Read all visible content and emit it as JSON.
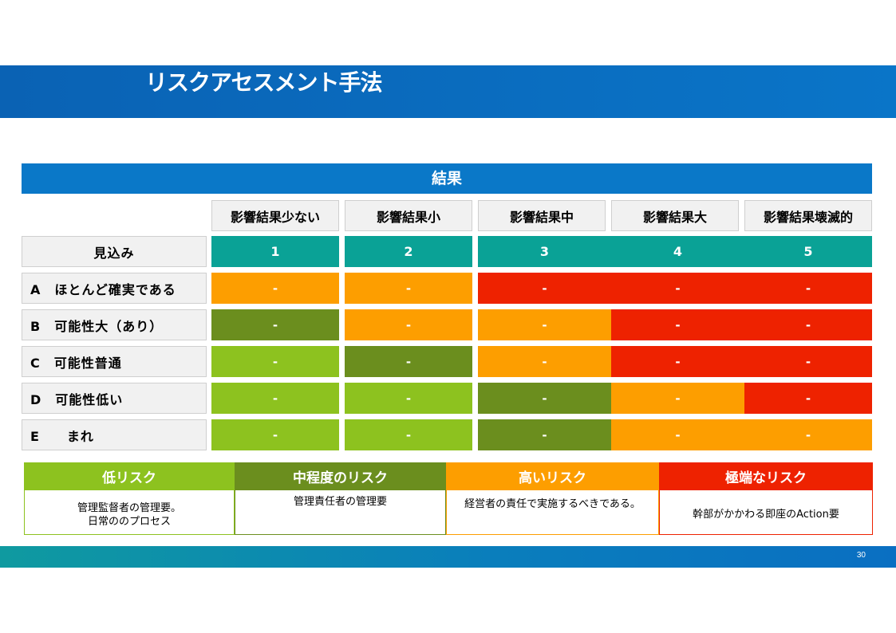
{
  "slide": {
    "title": "リスクアセスメント手法",
    "page_number": "30"
  },
  "matrix": {
    "header": "結果",
    "likelihood_label": "見込み",
    "columns": [
      "影響結果少ない",
      "影響結果小",
      "影響結果中",
      "影響結果大",
      "影響結果壊滅的"
    ],
    "column_numbers": [
      "1",
      "2",
      "3",
      "4",
      "5"
    ],
    "rows": [
      {
        "label": "A　ほとんど確実である",
        "cells": [
          "-",
          "-",
          "-",
          "-",
          "-"
        ],
        "levels": [
          "high",
          "high",
          "extreme",
          "extreme",
          "extreme"
        ]
      },
      {
        "label": "B　可能性大（あり）",
        "cells": [
          "-",
          "-",
          "-",
          "-",
          "-"
        ],
        "levels": [
          "moderate",
          "high",
          "high",
          "extreme",
          "extreme"
        ]
      },
      {
        "label": "C　可能性普通",
        "cells": [
          "-",
          "-",
          "-",
          "-",
          "-"
        ],
        "levels": [
          "low",
          "moderate",
          "high",
          "extreme",
          "extreme"
        ]
      },
      {
        "label": "D　可能性低い",
        "cells": [
          "-",
          "-",
          "-",
          "-",
          "-"
        ],
        "levels": [
          "low",
          "low",
          "moderate",
          "high",
          "extreme"
        ]
      },
      {
        "label": "E　　まれ",
        "cells": [
          "-",
          "-",
          "-",
          "-",
          "-"
        ],
        "levels": [
          "low",
          "low",
          "moderate",
          "high",
          "high"
        ]
      }
    ]
  },
  "legend": [
    {
      "level": "low",
      "title": "低リスク",
      "description_lines": [
        "管理監督者の管理要。",
        "日常ののプロセス"
      ]
    },
    {
      "level": "moderate",
      "title": "中程度のリスク",
      "description_lines": [
        "管理責任者の管理要"
      ]
    },
    {
      "level": "high",
      "title": "高いリスク",
      "description_lines": [
        "経営者の責任で実施するべきである。"
      ]
    },
    {
      "level": "extreme",
      "title": "極端なリスク",
      "description_lines": [
        "幹部がかかわる即座のAction要"
      ]
    }
  ],
  "colors": {
    "low": "#8dc21f",
    "moderate": "#6b8e1e",
    "high": "#fd9e00",
    "extreme": "#ee2200",
    "teal": "#0aa296",
    "header_blue": "#0a78c8"
  }
}
